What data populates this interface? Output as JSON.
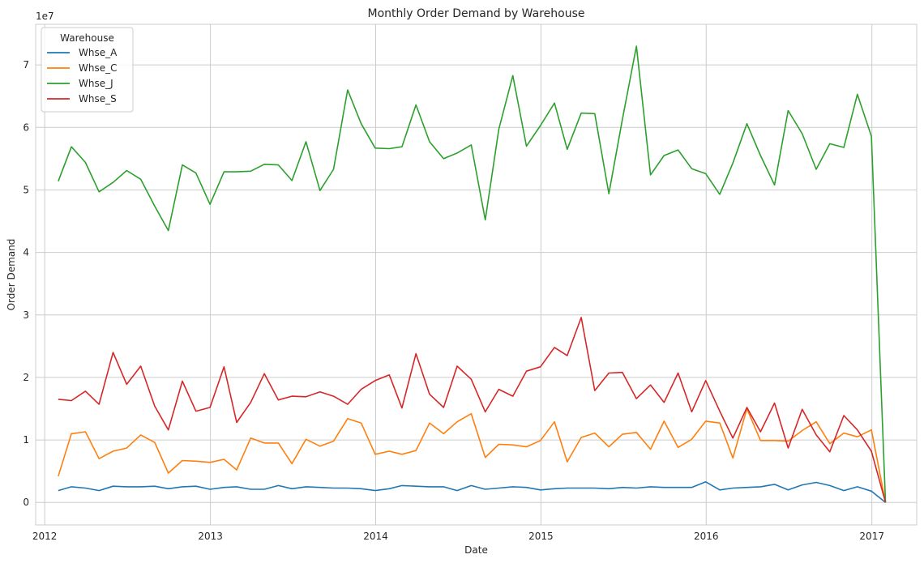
{
  "chart_data": {
    "type": "line",
    "title": "Monthly Order Demand by Warehouse",
    "xlabel": "Date",
    "ylabel": "Order Demand",
    "y_offset_label": "1e7",
    "x_tick_labels": [
      "2012",
      "2013",
      "2014",
      "2015",
      "2016",
      "2017"
    ],
    "y_tick_labels": [
      "0",
      "1",
      "2",
      "3",
      "4",
      "5",
      "6",
      "7"
    ],
    "xlim": [
      "2011-12-12",
      "2017-04-10"
    ],
    "ylim": [
      -3600000,
      76500000
    ],
    "grid": true,
    "legend": {
      "title": "Warehouse",
      "placement": "upper-left"
    },
    "x": [
      "2012-01-31",
      "2012-02-29",
      "2012-03-31",
      "2012-04-30",
      "2012-05-31",
      "2012-06-30",
      "2012-07-31",
      "2012-08-31",
      "2012-09-30",
      "2012-10-31",
      "2012-11-30",
      "2012-12-31",
      "2013-01-31",
      "2013-02-28",
      "2013-03-31",
      "2013-04-30",
      "2013-05-31",
      "2013-06-30",
      "2013-07-31",
      "2013-08-31",
      "2013-09-30",
      "2013-10-31",
      "2013-11-30",
      "2013-12-31",
      "2014-01-31",
      "2014-02-28",
      "2014-03-31",
      "2014-04-30",
      "2014-05-31",
      "2014-06-30",
      "2014-07-31",
      "2014-08-31",
      "2014-09-30",
      "2014-10-31",
      "2014-11-30",
      "2014-12-31",
      "2015-01-31",
      "2015-02-28",
      "2015-03-31",
      "2015-04-30",
      "2015-05-31",
      "2015-06-30",
      "2015-07-31",
      "2015-08-31",
      "2015-09-30",
      "2015-10-31",
      "2015-11-30",
      "2015-12-31",
      "2016-01-31",
      "2016-02-29",
      "2016-03-31",
      "2016-04-30",
      "2016-05-31",
      "2016-06-30",
      "2016-07-31",
      "2016-08-31",
      "2016-09-30",
      "2016-10-31",
      "2016-11-30",
      "2016-12-31",
      "2017-01-31"
    ],
    "series": [
      {
        "name": "Whse_A",
        "color": "#1f77b4",
        "values": [
          1900000,
          2500000,
          2300000,
          1900000,
          2600000,
          2500000,
          2500000,
          2600000,
          2200000,
          2500000,
          2600000,
          2100000,
          2400000,
          2500000,
          2100000,
          2100000,
          2700000,
          2200000,
          2500000,
          2400000,
          2300000,
          2300000,
          2200000,
          1900000,
          2200000,
          2700000,
          2600000,
          2500000,
          2500000,
          1900000,
          2700000,
          2100000,
          2300000,
          2500000,
          2400000,
          2000000,
          2200000,
          2300000,
          2300000,
          2300000,
          2200000,
          2400000,
          2300000,
          2500000,
          2400000,
          2400000,
          2400000,
          3300000,
          2000000,
          2300000,
          2400000,
          2500000,
          2900000,
          2000000,
          2800000,
          3200000,
          2700000,
          1900000,
          2500000,
          1800000,
          0
        ]
      },
      {
        "name": "Whse_C",
        "color": "#ff7f0e",
        "values": [
          4200000,
          11000000,
          11300000,
          7000000,
          8200000,
          8700000,
          10800000,
          9600000,
          4700000,
          6700000,
          6600000,
          6400000,
          6900000,
          5200000,
          10300000,
          9500000,
          9500000,
          6200000,
          10100000,
          9000000,
          9800000,
          13400000,
          12700000,
          7700000,
          8200000,
          7700000,
          8300000,
          12700000,
          11000000,
          12900000,
          14200000,
          7200000,
          9300000,
          9200000,
          8900000,
          9900000,
          12900000,
          6500000,
          10400000,
          11100000,
          8900000,
          10900000,
          11200000,
          8500000,
          13000000,
          8800000,
          10100000,
          13000000,
          12700000,
          7100000,
          15000000,
          9900000,
          9900000,
          9800000,
          11500000,
          12900000,
          9400000,
          11100000,
          10500000,
          11600000,
          0
        ]
      },
      {
        "name": "Whse_J",
        "color": "#2ca02c",
        "values": [
          51400000,
          56900000,
          54400000,
          49700000,
          51200000,
          53100000,
          51700000,
          47400000,
          43500000,
          54000000,
          52700000,
          47700000,
          52900000,
          52900000,
          53000000,
          54100000,
          54000000,
          51500000,
          57700000,
          49900000,
          53300000,
          66000000,
          60600000,
          56700000,
          56600000,
          56900000,
          63600000,
          57700000,
          55000000,
          55900000,
          57200000,
          45200000,
          59700000,
          68300000,
          57000000,
          60300000,
          63900000,
          56500000,
          62300000,
          62200000,
          49400000,
          61300000,
          73000000,
          52400000,
          55500000,
          56400000,
          53400000,
          52600000,
          49300000,
          54300000,
          60600000,
          55500000,
          50800000,
          62700000,
          59000000,
          53300000,
          57400000,
          56800000,
          65300000,
          58600000,
          0
        ]
      },
      {
        "name": "Whse_S",
        "color": "#d62728",
        "values": [
          16500000,
          16300000,
          17800000,
          15700000,
          24000000,
          18900000,
          21800000,
          15400000,
          11600000,
          19400000,
          14600000,
          15200000,
          21700000,
          12800000,
          16000000,
          20600000,
          16400000,
          17000000,
          16900000,
          17700000,
          17000000,
          15700000,
          18100000,
          19500000,
          20400000,
          15100000,
          23800000,
          17300000,
          15200000,
          21800000,
          19700000,
          14500000,
          18100000,
          17000000,
          21000000,
          21700000,
          24800000,
          23500000,
          29600000,
          17900000,
          20700000,
          20800000,
          16600000,
          18800000,
          16000000,
          20700000,
          14500000,
          19500000,
          14600000,
          10300000,
          15200000,
          11300000,
          15900000,
          8700000,
          14900000,
          10800000,
          8100000,
          13900000,
          11600000,
          8200000,
          0
        ]
      }
    ]
  }
}
